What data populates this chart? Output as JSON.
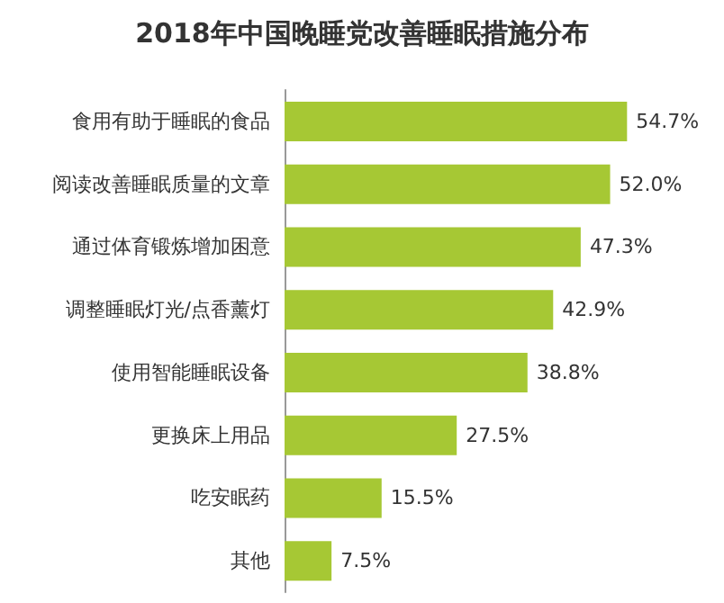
{
  "chart_data": {
    "type": "bar",
    "orientation": "horizontal",
    "title": "2018年中国晚睡党改善睡眠措施分布",
    "categories": [
      "食用有助于睡眠的食品",
      "阅读改善睡眠质量的文章",
      "通过体育锻炼增加困意",
      "调整睡眠灯光/点香薰灯",
      "使用智能睡眠设备",
      "更换床上用品",
      "吃安眠药",
      "其他"
    ],
    "values": [
      54.7,
      52.0,
      47.3,
      42.9,
      38.8,
      27.5,
      15.5,
      7.5
    ],
    "value_labels": [
      "54.7%",
      "52.0%",
      "47.3%",
      "42.9%",
      "38.8%",
      "27.5%",
      "15.5%",
      "7.5%"
    ],
    "color": "#a6c834"
  }
}
